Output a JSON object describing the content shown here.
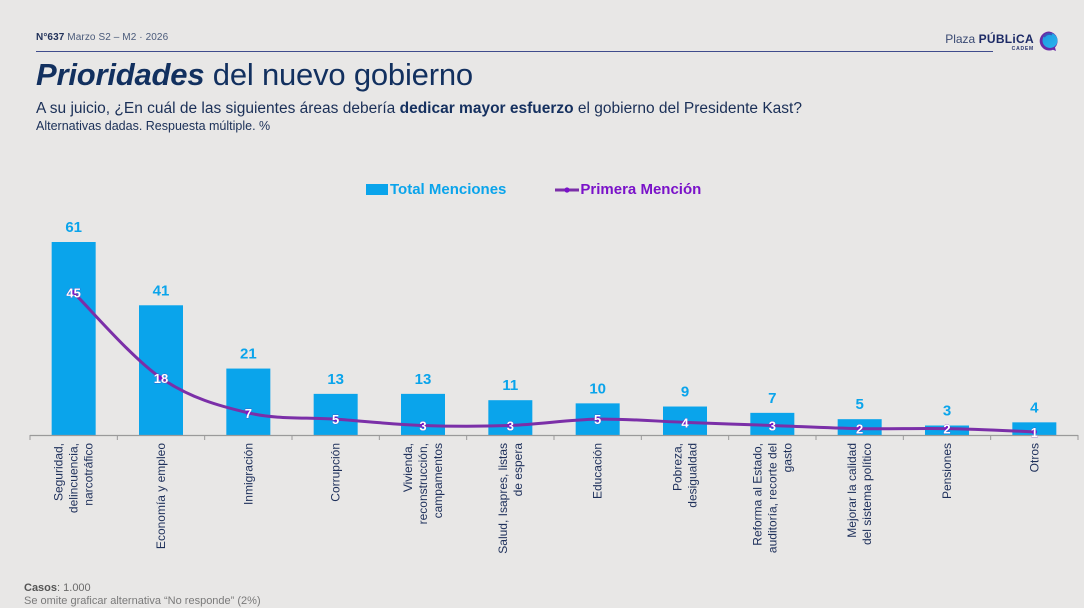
{
  "header": {
    "issue_number": "N°637",
    "issue_period": "Marzo S2 – M2 · 2026",
    "title_emphasis": "Prioridades",
    "title_rest": " del nuevo gobierno",
    "question_pre": "A su juicio, ¿En cuál de las siguientes áreas debería ",
    "question_bold": "dedicar mayor esfuerzo",
    "question_post": " el gobierno del Presidente Kast?",
    "subtitle": "Alternativas dadas. Respuesta múltiple. %"
  },
  "logo": {
    "prefix": "Plaza ",
    "name": "PÚBLiCA",
    "sub": "CADEM",
    "icon": "speech-bubble-icon"
  },
  "colors": {
    "bar": "#0aa4eb",
    "line": "#7b2fa8",
    "line_label": "#7a12c9",
    "title": "#12305f"
  },
  "chart_data": {
    "type": "bar",
    "title": "Prioridades del nuevo gobierno",
    "xlabel": "",
    "ylabel": "%",
    "ylim": [
      0,
      65
    ],
    "grid": false,
    "legend_position": "top-center",
    "categories": [
      "Seguridad, delincuencia, narcotráfico",
      "Economía y empleo",
      "Inmigración",
      "Corrupción",
      "Vivienda, reconstrucción, campamentos",
      "Salud, Isapres, listas de espera",
      "Educación",
      "Pobreza, desigualdad",
      "Reforma al Estado, auditoría, recorte del gasto",
      "Mejorar la calidad del sistema político",
      "Pensiones",
      "Otros"
    ],
    "category_lines": [
      [
        "Seguridad,",
        "delincuencia,",
        "narcotráfico"
      ],
      [
        "Economía y empleo"
      ],
      [
        "Inmigración"
      ],
      [
        "Corrupción"
      ],
      [
        "Vivienda,",
        "reconstrucción,",
        "campamentos"
      ],
      [
        "Salud, Isapres, listas",
        "de espera"
      ],
      [
        "Educación"
      ],
      [
        "Pobreza,",
        "desigualdad"
      ],
      [
        "Reforma al Estado,",
        "auditoría, recorte del",
        "gasto"
      ],
      [
        "Mejorar la calidad",
        "del sistema político"
      ],
      [
        "Pensiones"
      ],
      [
        "Otros"
      ]
    ],
    "series": [
      {
        "name": "Total Menciones",
        "type": "bar",
        "values": [
          61,
          41,
          21,
          13,
          13,
          11,
          10,
          9,
          7,
          5,
          3,
          4
        ]
      },
      {
        "name": "Primera Mención",
        "type": "line",
        "values": [
          45,
          18,
          7,
          5,
          3,
          3,
          5,
          4,
          3,
          2,
          2,
          1
        ]
      }
    ]
  },
  "footer": {
    "cases_label": "Casos",
    "cases_value": ": 1.000",
    "note": "Se omite graficar alternativa “No responde” (2%)"
  }
}
